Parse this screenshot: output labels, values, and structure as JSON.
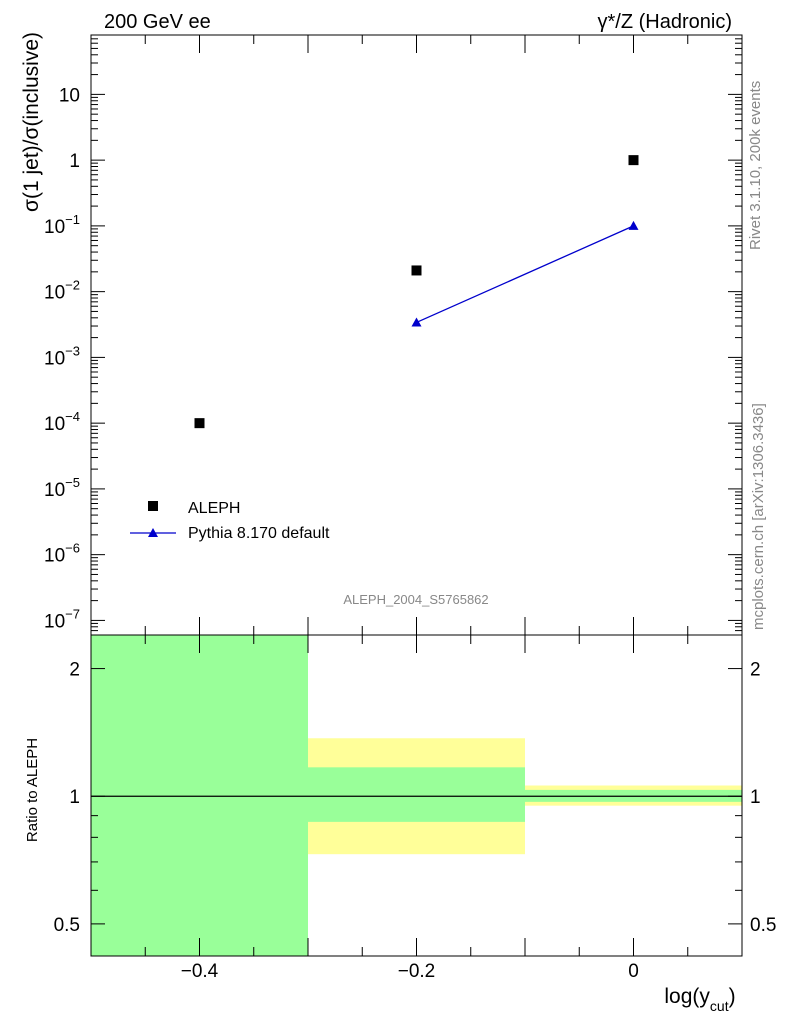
{
  "header": {
    "left_title": "200 GeV ee",
    "right_title": "γ*/Z (Hadronic)"
  },
  "side_labels": {
    "rivet": "Rivet 3.1.10,  200k events",
    "mcplots": "mcplots.cern.ch [arXiv:1306.3436]"
  },
  "analysis_tag": "ALEPH_2004_S5765862",
  "colors": {
    "data_marker": "#000000",
    "mc_line": "#0000cc",
    "band_inner": "#99ff99",
    "band_outer": "#ffff99",
    "side_text": "#888888"
  },
  "chart_data": {
    "type": "scatter",
    "main": {
      "ylabel": "σ(1 jet)/σ(inclusive)",
      "yscale": "log",
      "ylim": [
        6e-08,
        80
      ],
      "yticks": [
        {
          "value": 1e-07,
          "base": "10",
          "exp": "−7"
        },
        {
          "value": 1e-06,
          "base": "10",
          "exp": "−6"
        },
        {
          "value": 1e-05,
          "base": "10",
          "exp": "−5"
        },
        {
          "value": 0.0001,
          "base": "10",
          "exp": "−4"
        },
        {
          "value": 0.001,
          "base": "10",
          "exp": "−3"
        },
        {
          "value": 0.01,
          "base": "10",
          "exp": "−2"
        },
        {
          "value": 0.1,
          "base": "10",
          "exp": "−1"
        },
        {
          "value": 1,
          "base": "1",
          "exp": ""
        },
        {
          "value": 10,
          "base": "10",
          "exp": ""
        }
      ],
      "series": [
        {
          "name": "ALEPH",
          "kind": "data",
          "x": [
            -0.4,
            -0.2,
            0.0
          ],
          "y": [
            0.0001,
            0.021,
            1.0
          ]
        },
        {
          "name": "Pythia 8.170 default",
          "kind": "mc",
          "x": [
            -0.2,
            0.0
          ],
          "y": [
            0.0034,
            0.1
          ]
        }
      ]
    },
    "ratio": {
      "ylabel": "Ratio to ALEPH",
      "yscale": "log",
      "ylim": [
        0.42,
        2.4
      ],
      "yticks": [
        {
          "value": 0.5,
          "label": "0.5"
        },
        {
          "value": 1,
          "label": "1"
        },
        {
          "value": 2,
          "label": "2"
        }
      ],
      "bands": [
        {
          "x_low": -0.5,
          "x_high": -0.3,
          "stat_low": 0.42,
          "stat_high": 2.4,
          "total_low": 0.42,
          "total_high": 2.4
        },
        {
          "x_low": -0.3,
          "x_high": -0.1,
          "stat_low": 0.87,
          "stat_high": 1.17,
          "total_low": 0.73,
          "total_high": 1.37
        },
        {
          "x_low": -0.1,
          "x_high": 0.1,
          "stat_low": 0.97,
          "stat_high": 1.035,
          "total_low": 0.95,
          "total_high": 1.06
        }
      ],
      "reference": 1.0
    },
    "x": {
      "label_base": "log(y",
      "label_sub": "cut",
      "label_close": ")",
      "lim": [
        -0.5,
        0.1
      ],
      "ticks": [
        {
          "value": -0.4,
          "label": "−0.4"
        },
        {
          "value": -0.2,
          "label": "−0.2"
        },
        {
          "value": 0,
          "label": "0"
        }
      ]
    },
    "legend": {
      "position": "lower-left",
      "entries": [
        {
          "label": "ALEPH",
          "marker": "square"
        },
        {
          "label": "Pythia 8.170 default",
          "marker": "triangle-line"
        }
      ]
    }
  }
}
